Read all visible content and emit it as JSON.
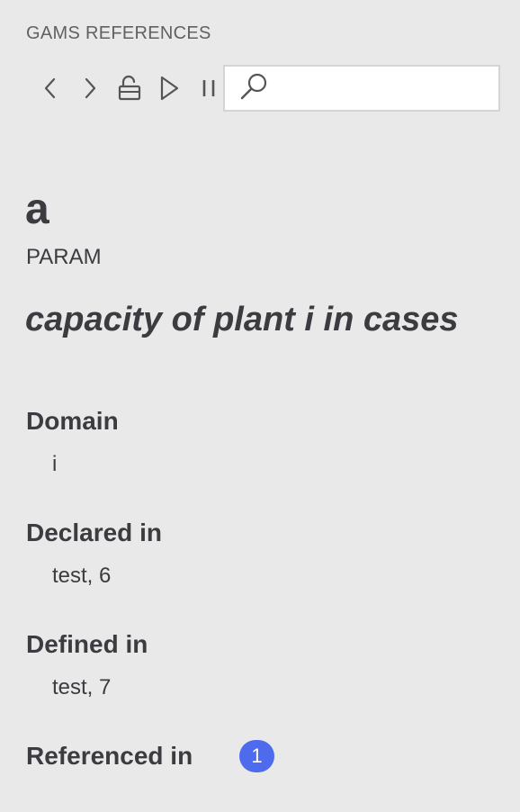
{
  "panel": {
    "title": "GAMS REFERENCES"
  },
  "toolbar": {
    "buttons": [
      {
        "name": "back",
        "icon": "chevron-left-icon"
      },
      {
        "name": "forward",
        "icon": "chevron-right-icon"
      },
      {
        "name": "unlock",
        "icon": "unlock-icon"
      },
      {
        "name": "run",
        "icon": "play-icon"
      },
      {
        "name": "pause",
        "icon": "pause-icon"
      }
    ],
    "search": {
      "icon": "search-icon",
      "value": "",
      "placeholder": ""
    }
  },
  "symbol": {
    "name": "a",
    "type": "PARAM",
    "description": "capacity of plant i in cases"
  },
  "sections": {
    "domain": {
      "heading": "Domain",
      "value": "i"
    },
    "declared": {
      "heading": "Declared in",
      "value": "test, 6"
    },
    "defined": {
      "heading": "Defined in",
      "value": "test, 7"
    },
    "referenced": {
      "heading": "Referenced in",
      "count": "1"
    }
  },
  "colors": {
    "background": "#e9e9e9",
    "text": "#3b3b40",
    "badge": "#4f6bed"
  }
}
